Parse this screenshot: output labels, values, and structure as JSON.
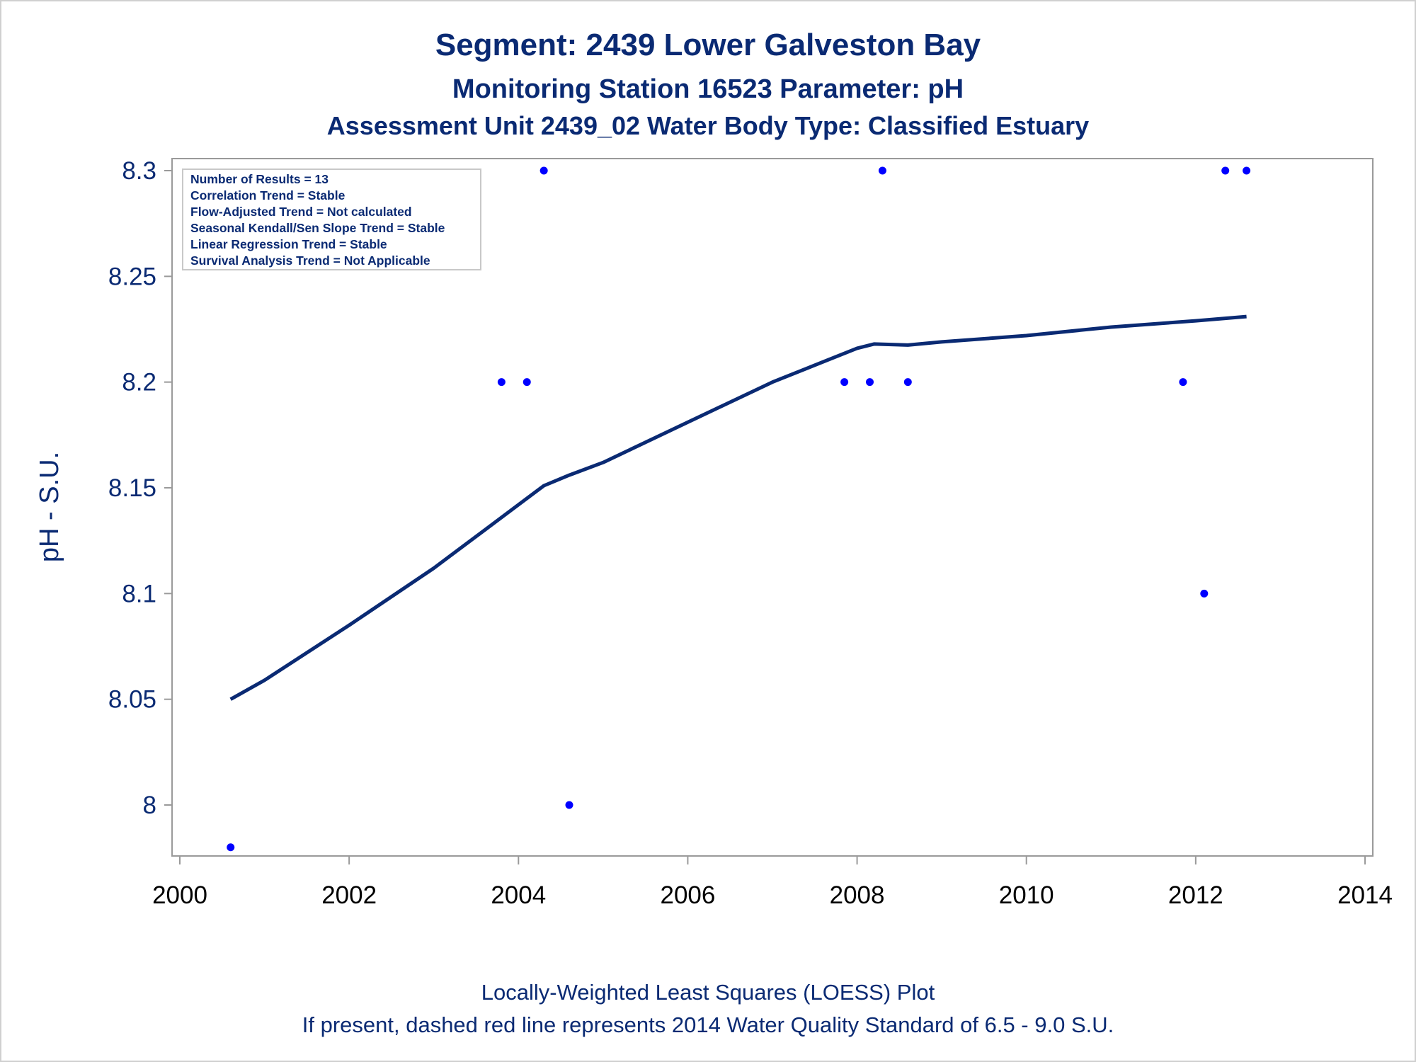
{
  "colors": {
    "text": "#0a2a73",
    "line": "#0a2a73",
    "points": "#0000ff",
    "axis": "#9a9a9a"
  },
  "chart_data": {
    "type": "scatter",
    "title": "Segment: 2439  Lower Galveston Bay",
    "subtitle": "Monitoring Station 16523 Parameter: pH",
    "subtitle2": "Assessment Unit 2439_02   Water Body Type: Classified Estuary",
    "xlabel": "",
    "ylabel": "pH - S.U.",
    "xlim": [
      2000,
      2014
    ],
    "ylim": [
      7.98,
      8.305
    ],
    "xticks": [
      2000,
      2002,
      2004,
      2006,
      2008,
      2010,
      2012,
      2014
    ],
    "yticks": [
      8.0,
      8.05,
      8.1,
      8.15,
      8.2,
      8.25,
      8.3
    ],
    "ytick_labels": [
      "8",
      "8.05",
      "8.1",
      "8.15",
      "8.2",
      "8.25",
      "8.3"
    ],
    "grid": false,
    "series": [
      {
        "points": [
          {
            "x": 2000.6,
            "y": 7.98
          },
          {
            "x": 2003.8,
            "y": 8.2
          },
          {
            "x": 2004.1,
            "y": 8.2
          },
          {
            "x": 2004.3,
            "y": 8.3
          },
          {
            "x": 2004.6,
            "y": 8.0
          },
          {
            "x": 2007.85,
            "y": 8.2
          },
          {
            "x": 2008.15,
            "y": 8.2
          },
          {
            "x": 2008.3,
            "y": 8.3
          },
          {
            "x": 2008.6,
            "y": 8.2
          },
          {
            "x": 2011.85,
            "y": 8.2
          },
          {
            "x": 2012.1,
            "y": 8.1
          },
          {
            "x": 2012.35,
            "y": 8.3
          },
          {
            "x": 2012.6,
            "y": 8.3
          }
        ]
      }
    ],
    "loess_line": [
      {
        "x": 2000.6,
        "y": 8.05
      },
      {
        "x": 2001.0,
        "y": 8.059
      },
      {
        "x": 2002.0,
        "y": 8.085
      },
      {
        "x": 2003.0,
        "y": 8.112
      },
      {
        "x": 2003.6,
        "y": 8.13
      },
      {
        "x": 2004.0,
        "y": 8.142
      },
      {
        "x": 2004.3,
        "y": 8.151
      },
      {
        "x": 2004.6,
        "y": 8.156
      },
      {
        "x": 2005.0,
        "y": 8.162
      },
      {
        "x": 2006.0,
        "y": 8.181
      },
      {
        "x": 2007.0,
        "y": 8.2
      },
      {
        "x": 2007.5,
        "y": 8.208
      },
      {
        "x": 2008.0,
        "y": 8.216
      },
      {
        "x": 2008.2,
        "y": 8.218
      },
      {
        "x": 2008.6,
        "y": 8.2175
      },
      {
        "x": 2009.0,
        "y": 8.219
      },
      {
        "x": 2010.0,
        "y": 8.222
      },
      {
        "x": 2011.0,
        "y": 8.226
      },
      {
        "x": 2012.0,
        "y": 8.229
      },
      {
        "x": 2012.6,
        "y": 8.231
      }
    ],
    "annotations": [
      "Number of Results = 13",
      "Correlation Trend = Stable",
      "Flow-Adjusted Trend = Not calculated",
      "Seasonal Kendall/Sen Slope Trend = Stable",
      "Linear Regression Trend = Stable",
      "Survival Analysis Trend = Not Applicable"
    ],
    "legend_position": "top-left"
  },
  "footnotes": [
    "Locally-Weighted Least Squares (LOESS) Plot",
    "If present, dashed red line represents 2014 Water Quality Standard of 6.5 - 9.0 S.U."
  ]
}
